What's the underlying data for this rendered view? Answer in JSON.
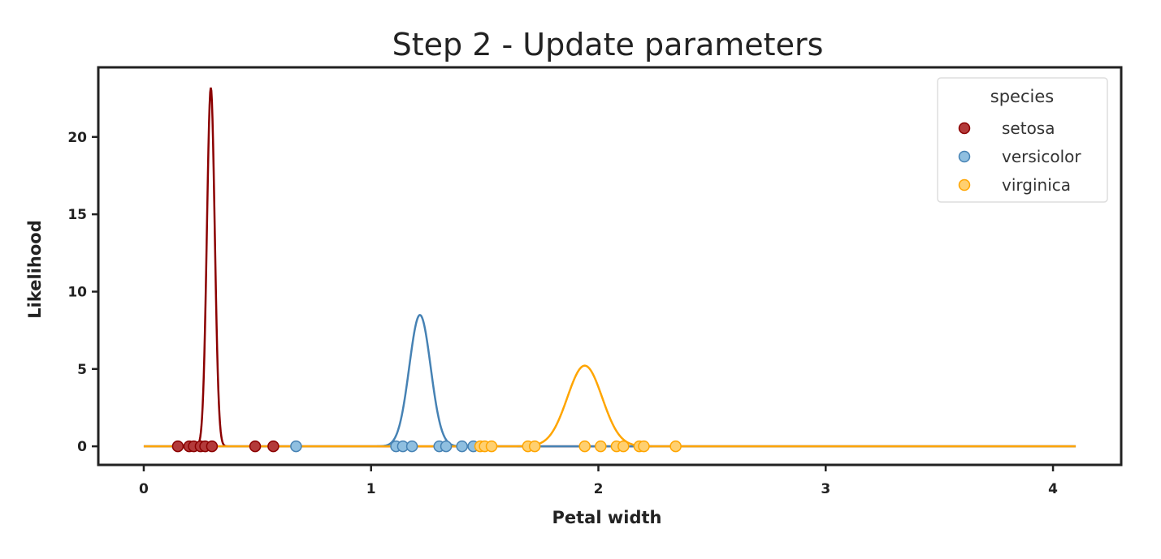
{
  "chart_data": {
    "type": "line",
    "title": "Step 2 - Update parameters",
    "xlabel": "Petal width",
    "ylabel": "Likelihood",
    "xlim": [
      -0.2,
      4.3
    ],
    "ylim": [
      -1.2,
      24.5
    ],
    "xticks": [
      0,
      1,
      2,
      3,
      4
    ],
    "yticks": [
      0,
      5,
      10,
      15,
      20
    ],
    "grid": false,
    "legend": {
      "title": "species",
      "placement": "top-right"
    },
    "series": [
      {
        "name": "setosa",
        "color": "#8b0000",
        "marker_color": "#b33a3a",
        "marker_edge": "#8b0000",
        "gaussian": {
          "mean": 0.295,
          "std": 0.0172
        },
        "x_range": [
          0,
          4.1
        ],
        "points": [
          0.15,
          0.2,
          0.22,
          0.25,
          0.27,
          0.3,
          0.49,
          0.57
        ]
      },
      {
        "name": "versicolor",
        "color": "#4682b4",
        "marker_color": "#8fbfe0",
        "marker_edge": "#4682b4",
        "gaussian": {
          "mean": 1.215,
          "std": 0.047
        },
        "x_range": [
          0,
          4.1
        ],
        "points": [
          0.67,
          1.11,
          1.14,
          1.18,
          1.3,
          1.33,
          1.4,
          1.45
        ]
      },
      {
        "name": "virginica",
        "color": "#ffa500",
        "marker_color": "#ffd070",
        "marker_edge": "#ffa500",
        "gaussian": {
          "mean": 1.94,
          "std": 0.0765
        },
        "x_range": [
          0,
          4.1
        ],
        "points": [
          1.48,
          1.5,
          1.53,
          1.69,
          1.72,
          1.94,
          2.01,
          2.08,
          2.11,
          2.18,
          2.2,
          2.34
        ]
      }
    ]
  }
}
